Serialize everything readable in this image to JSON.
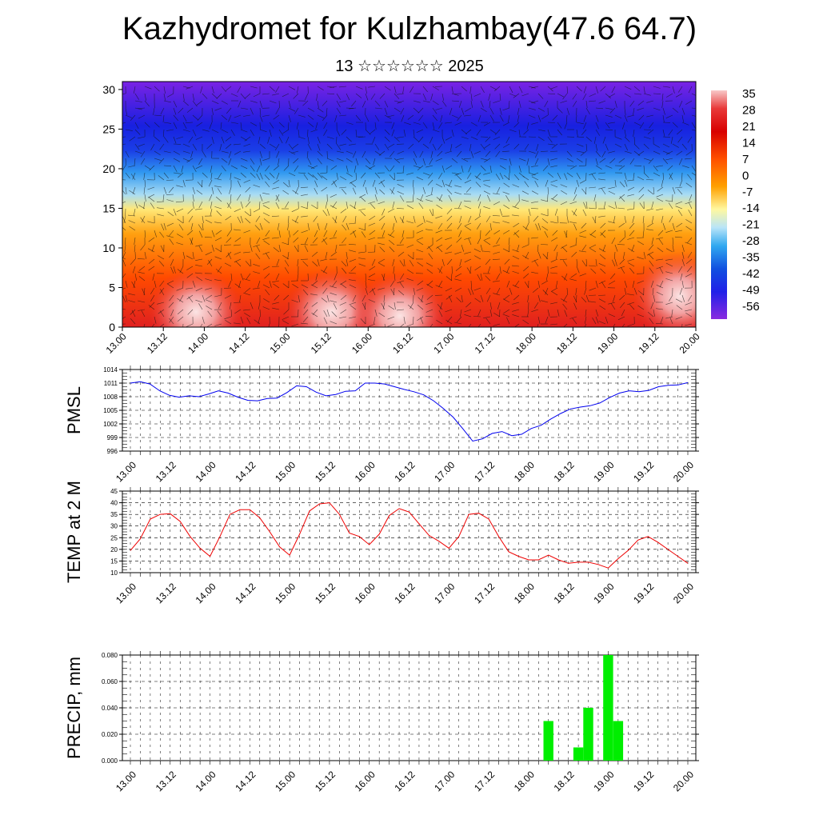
{
  "header": {
    "title": "Kazhydromet for Kulzhambay(47.6 64.7)",
    "subtitle": "13 ☆☆☆☆☆☆ 2025"
  },
  "chart_data": [
    {
      "type": "heatmap",
      "title": "",
      "xlabel": "",
      "ylabel": "",
      "x_tick_labels": [
        "13.00",
        "13.12",
        "14.00",
        "14.12",
        "15.00",
        "15.12",
        "16.00",
        "16.12",
        "17.00",
        "17.12",
        "18.00",
        "18.12",
        "19.00",
        "19.12",
        "20.00"
      ],
      "y_ticks": [
        0,
        5,
        10,
        15,
        20,
        25,
        30
      ],
      "ylim": [
        0,
        31
      ],
      "colorbar": {
        "labels": [
          "35",
          "28",
          "21",
          "14",
          "7",
          "0",
          "-7",
          "-14",
          "-21",
          "-28",
          "-35",
          "-42",
          "-49",
          "-56"
        ],
        "colors_top_to_bottom": [
          "#f8c0c0",
          "#e83030",
          "#d80000",
          "#ff4000",
          "#ff8000",
          "#ffb000",
          "#ffe050",
          "#fff8a0",
          "#c0e8f8",
          "#40b0f0",
          "#1070e0",
          "#1030e0",
          "#3010e8",
          "#8020e0"
        ]
      },
      "description_overlay": "wind barbs"
    },
    {
      "type": "line",
      "ylabel": "PMSL",
      "yticks": [
        "1014",
        "1011",
        "1008",
        "1005",
        "1002",
        "999",
        "996"
      ],
      "ylim": [
        996,
        1014
      ],
      "x_tick_labels": [
        "13.00",
        "13.12",
        "14.00",
        "14.12",
        "15.00",
        "15.12",
        "16.00",
        "16.12",
        "17.00",
        "17.12",
        "18.00",
        "18.12",
        "19.00",
        "19.12",
        "20.00"
      ],
      "color": "#0000ee",
      "values": [
        1011,
        1011.3,
        1010.8,
        1009.3,
        1008.3,
        1007.9,
        1008.2,
        1008,
        1008.6,
        1009.3,
        1008.8,
        1007.9,
        1007.2,
        1007.1,
        1007.6,
        1007.7,
        1008.9,
        1010.4,
        1010.2,
        1009,
        1008.2,
        1008.5,
        1009.2,
        1009.3,
        1011,
        1011,
        1010.8,
        1010.2,
        1009.6,
        1009.1,
        1008.4,
        1007.1,
        1005.4,
        1003.5,
        1000.9,
        998.2,
        998.7,
        999.9,
        1000.3,
        999.4,
        999.7,
        1001,
        1001.7,
        1003.1,
        1004.3,
        1005.3,
        1005.7,
        1006,
        1006.6,
        1007.8,
        1008.8,
        1009.3,
        1009.1,
        1009.4,
        1010.2,
        1010.5,
        1010.6,
        1011.1
      ]
    },
    {
      "type": "line",
      "ylabel": "TEMP at 2 M",
      "yticks": [
        "45",
        "40",
        "35",
        "30",
        "25",
        "20",
        "15",
        "10"
      ],
      "ylim": [
        10,
        45
      ],
      "x_tick_labels": [
        "13.00",
        "13.12",
        "14.00",
        "14.12",
        "15.00",
        "15.12",
        "16.00",
        "16.12",
        "17.00",
        "17.12",
        "18.00",
        "18.12",
        "19.00",
        "19.12",
        "20.00"
      ],
      "color": "#ee0000",
      "values": [
        19.5,
        24.5,
        33,
        35,
        35.3,
        32,
        25.5,
        20.5,
        17,
        25.5,
        35,
        37,
        37,
        33.5,
        27.5,
        21,
        17.5,
        26.5,
        36.5,
        39.5,
        40,
        35,
        27,
        25.5,
        22,
        26.5,
        34.5,
        37.5,
        36,
        31,
        26,
        23.5,
        20.5,
        25.5,
        35,
        35.5,
        33,
        25.5,
        19,
        17,
        15.5,
        15.5,
        17.5,
        15.5,
        14,
        14.5,
        14.5,
        13.5,
        12,
        16,
        19.5,
        24,
        25.5,
        23,
        20,
        17,
        14
      ]
    },
    {
      "type": "bar",
      "ylabel": "PRECIP, mm",
      "yticks": [
        "0.080",
        "0.060",
        "0.040",
        "0.020",
        "0.000"
      ],
      "ylim": [
        0,
        0.08
      ],
      "x_tick_labels": [
        "13.00",
        "13.12",
        "14.00",
        "14.12",
        "15.00",
        "15.12",
        "16.00",
        "16.12",
        "17.00",
        "17.12",
        "18.00",
        "18.12",
        "19.00",
        "19.12",
        "20.00"
      ],
      "color": "#00ee00",
      "bars": [
        {
          "x": 42,
          "value": 0.03
        },
        {
          "x": 45,
          "value": 0.01
        },
        {
          "x": 46,
          "value": 0.04
        },
        {
          "x": 48,
          "value": 0.08
        },
        {
          "x": 49,
          "value": 0.03
        }
      ]
    }
  ]
}
